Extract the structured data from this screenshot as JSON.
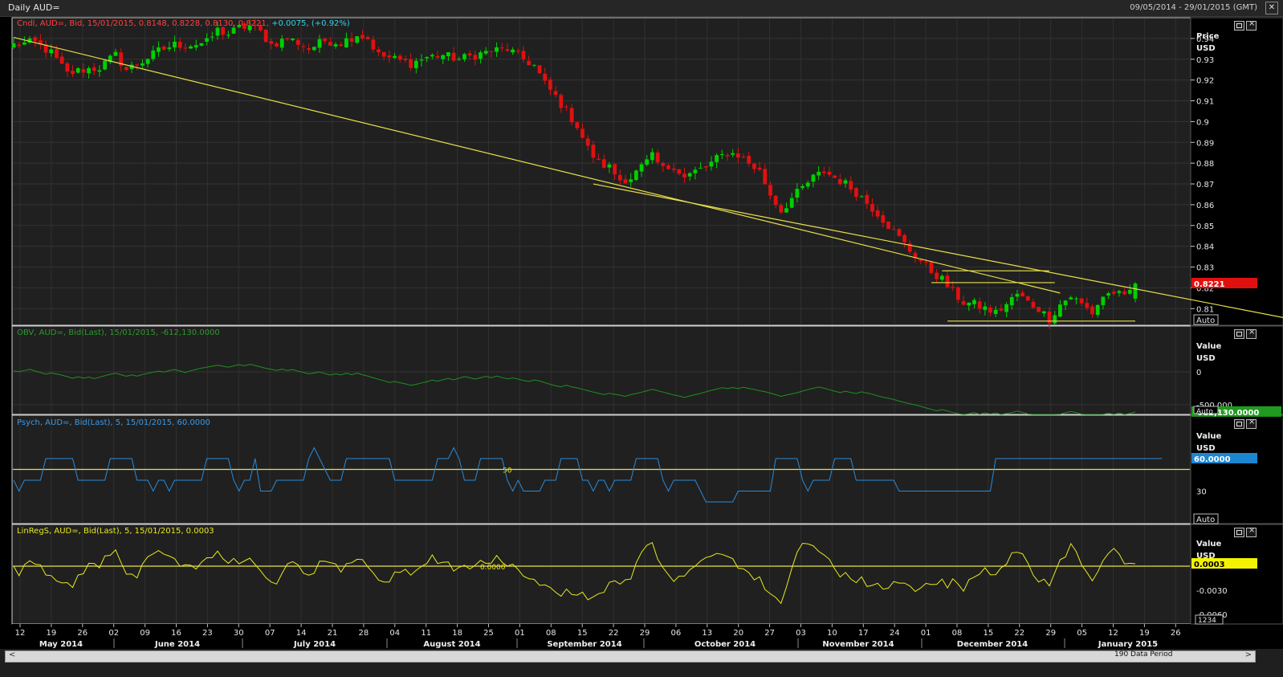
{
  "window": {
    "title": "Daily AUD=",
    "range": "09/05/2014 - 29/01/2015 (GMT)",
    "close_glyph": "✕"
  },
  "panels": {
    "price": {
      "title": "Cndl, AUD=, Bid, 15/01/2015, 0.8148, 0.8228, 0.8130, 0.8221,",
      "change": "+0.0075, (+0.92%)",
      "axis_title": [
        "Price",
        "USD"
      ],
      "last_label": "0.8221",
      "auto": "Auto"
    },
    "obv": {
      "title": "OBV, AUD=, Bid(Last), 15/01/2015, -612,130.0000",
      "axis_title": [
        "Value",
        "USD"
      ],
      "last_label": "-612,130.0000",
      "auto": "Auto"
    },
    "psych": {
      "title": "Psych, AUD=, Bid(Last),  5, 15/01/2015, 60.0000",
      "axis_title": [
        "Value",
        "USD"
      ],
      "last_label": "60.0000",
      "ref_label": "50",
      "auto": "Auto"
    },
    "linreg": {
      "title": "LinRegS, AUD=, Bid(Last),  5, 15/01/2015, 0.0003",
      "axis_title": [
        "Value",
        "USD"
      ],
      "last_label": "0.0003",
      "ref_label": "0.0000",
      "auto": "1234"
    }
  },
  "footer": {
    "scroll_left": "<",
    "scroll_right": ">",
    "period": "190 Data Period"
  },
  "colors": {
    "up": "#00d000",
    "down": "#e01010",
    "obv": "#1f8f1f",
    "psych": "#2a8ad8",
    "linreg": "#e8e820",
    "trend": "#e8e04a",
    "last_price": "#e01010",
    "last_obv": "#1f9a1f",
    "last_psych": "#1c86d0",
    "last_linreg": "#f3f300"
  },
  "chart_data": [
    {
      "type": "candlestick",
      "title": "Daily AUD=",
      "ylabel": "Price USD",
      "ylim": [
        0.802,
        0.95
      ],
      "y_ticks": [
        0.94,
        0.93,
        0.92,
        0.91,
        0.9,
        0.89,
        0.88,
        0.87,
        0.86,
        0.85,
        0.84,
        0.83,
        0.82,
        0.81
      ],
      "x_ticks": [
        "12",
        "19",
        "26",
        "02",
        "09",
        "16",
        "23",
        "30",
        "07",
        "14",
        "21",
        "28",
        "04",
        "11",
        "18",
        "25",
        "01",
        "08",
        "15",
        "22",
        "29",
        "06",
        "13",
        "20",
        "27",
        "03",
        "10",
        "17",
        "24",
        "01",
        "08",
        "15",
        "22",
        "29",
        "05",
        "12",
        "19",
        "26"
      ],
      "x_months": [
        "May 2014",
        "June 2014",
        "July 2014",
        "August 2014",
        "September 2014",
        "October 2014",
        "November 2014",
        "December 2014",
        "January 2015"
      ],
      "last": {
        "date": "15/01/2015",
        "open": 0.8148,
        "high": 0.8228,
        "low": 0.813,
        "close": 0.8221
      },
      "trend_lines": [
        {
          "from": [
            0,
            0.9405
          ],
          "to": [
            195,
            0.8175
          ]
        },
        {
          "from": [
            108,
            0.87
          ],
          "to": [
            250,
            0.799
          ]
        },
        {
          "from": [
            173,
            0.8282
          ],
          "to": [
            193,
            0.8282
          ]
        },
        {
          "from": [
            171,
            0.8225
          ],
          "to": [
            194,
            0.8225
          ]
        },
        {
          "from": [
            174,
            0.804
          ],
          "to": [
            209,
            0.804
          ]
        }
      ],
      "close_anchors": [
        [
          0,
          0.937
        ],
        [
          4,
          0.938
        ],
        [
          7,
          0.933
        ],
        [
          10,
          0.923
        ],
        [
          13,
          0.925
        ],
        [
          16,
          0.926
        ],
        [
          19,
          0.932
        ],
        [
          21,
          0.925
        ],
        [
          24,
          0.929
        ],
        [
          27,
          0.934
        ],
        [
          30,
          0.937
        ],
        [
          33,
          0.937
        ],
        [
          36,
          0.938
        ],
        [
          38,
          0.944
        ],
        [
          40,
          0.942
        ],
        [
          42,
          0.945
        ],
        [
          44,
          0.946
        ],
        [
          46,
          0.943
        ],
        [
          48,
          0.937
        ],
        [
          51,
          0.94
        ],
        [
          53,
          0.938
        ],
        [
          55,
          0.935
        ],
        [
          58,
          0.939
        ],
        [
          61,
          0.938
        ],
        [
          64,
          0.942
        ],
        [
          66,
          0.94
        ],
        [
          68,
          0.932
        ],
        [
          71,
          0.93
        ],
        [
          74,
          0.928
        ],
        [
          77,
          0.931
        ],
        [
          80,
          0.932
        ],
        [
          83,
          0.93
        ],
        [
          86,
          0.932
        ],
        [
          89,
          0.934
        ],
        [
          92,
          0.935
        ],
        [
          95,
          0.93
        ],
        [
          97,
          0.927
        ],
        [
          99,
          0.918
        ],
        [
          101,
          0.912
        ],
        [
          103,
          0.905
        ],
        [
          105,
          0.898
        ],
        [
          107,
          0.887
        ],
        [
          109,
          0.88
        ],
        [
          111,
          0.878
        ],
        [
          113,
          0.872
        ],
        [
          115,
          0.873
        ],
        [
          117,
          0.878
        ],
        [
          119,
          0.883
        ],
        [
          121,
          0.877
        ],
        [
          123,
          0.879
        ],
        [
          125,
          0.873
        ],
        [
          127,
          0.876
        ],
        [
          129,
          0.878
        ],
        [
          131,
          0.882
        ],
        [
          133,
          0.885
        ],
        [
          135,
          0.884
        ],
        [
          137,
          0.88
        ],
        [
          139,
          0.876
        ],
        [
          141,
          0.865
        ],
        [
          143,
          0.857
        ],
        [
          145,
          0.863
        ],
        [
          147,
          0.868
        ],
        [
          149,
          0.873
        ],
        [
          151,
          0.876
        ],
        [
          153,
          0.873
        ],
        [
          155,
          0.87
        ],
        [
          157,
          0.866
        ],
        [
          159,
          0.861
        ],
        [
          161,
          0.856
        ],
        [
          163,
          0.85
        ],
        [
          165,
          0.844
        ],
        [
          167,
          0.838
        ],
        [
          169,
          0.833
        ],
        [
          171,
          0.828
        ],
        [
          173,
          0.824
        ],
        [
          175,
          0.818
        ],
        [
          177,
          0.813
        ],
        [
          179,
          0.812
        ],
        [
          181,
          0.81
        ],
        [
          183,
          0.808
        ],
        [
          185,
          0.812
        ],
        [
          187,
          0.817
        ],
        [
          189,
          0.813
        ],
        [
          191,
          0.81
        ],
        [
          193,
          0.805
        ],
        [
          195,
          0.812
        ],
        [
          197,
          0.816
        ],
        [
          199,
          0.812
        ],
        [
          201,
          0.808
        ],
        [
          203,
          0.816
        ],
        [
          205,
          0.818
        ],
        [
          207,
          0.815
        ],
        [
          209,
          0.822
        ]
      ],
      "n_bars": 210
    },
    {
      "type": "line",
      "title": "OBV",
      "ylabel": "Value USD",
      "ylim": [
        -650000,
        700000
      ],
      "y_ticks": [
        0,
        -500000
      ],
      "y_tick_labels": [
        "0",
        "-500,000"
      ],
      "last": -612130
    },
    {
      "type": "line",
      "title": "Psych",
      "ylabel": "Value USD",
      "ylim": [
        0,
        100
      ],
      "y_ticks": [
        30
      ],
      "reference": 50,
      "last": 60,
      "levels": [
        40,
        30,
        40,
        40,
        40,
        40,
        60,
        60,
        60,
        60,
        60,
        60,
        40,
        40,
        40,
        40,
        40,
        40,
        60,
        60,
        60,
        60,
        60,
        40,
        40,
        40,
        30,
        40,
        40,
        30,
        40,
        40,
        40,
        40,
        40,
        40,
        60,
        60,
        60,
        60,
        60,
        40,
        30,
        40,
        40,
        60,
        30,
        30,
        30,
        40,
        40,
        40,
        40,
        40,
        40,
        60,
        70,
        60,
        50,
        40,
        40,
        40,
        60,
        60,
        60,
        60,
        60,
        60,
        60,
        60,
        60,
        40,
        40,
        40,
        40,
        40,
        40,
        40,
        40,
        60,
        60,
        60,
        70,
        60,
        40,
        40,
        40,
        60,
        60,
        60,
        60,
        60,
        40,
        30,
        40,
        30,
        30,
        30,
        30,
        40,
        40,
        40,
        60,
        60,
        60,
        60,
        40,
        40,
        30,
        40,
        40,
        30,
        40,
        40,
        40,
        40,
        60,
        60,
        60,
        60,
        60,
        40,
        30,
        40,
        40,
        40,
        40,
        40,
        30,
        20,
        20,
        20,
        20,
        20,
        20,
        30,
        30,
        30,
        30,
        30,
        30,
        30,
        60,
        60,
        60,
        60,
        60,
        40,
        30,
        40,
        40,
        40,
        40,
        60,
        60,
        60,
        60,
        40,
        40,
        40,
        40,
        40,
        40,
        40,
        40,
        30,
        30,
        30,
        30,
        30,
        30,
        30,
        30,
        30,
        30,
        30,
        30,
        30,
        30,
        30,
        30,
        30,
        30,
        60,
        60,
        60,
        60,
        60,
        60,
        60,
        60,
        60,
        60,
        60,
        60,
        60,
        60,
        60,
        60,
        60,
        60,
        60,
        60,
        60,
        60,
        60,
        60,
        60,
        60,
        60,
        60,
        60,
        60,
        60,
        60
      ]
    },
    {
      "type": "line",
      "title": "LinRegS",
      "ylabel": "Value USD",
      "ylim": [
        -0.0072,
        0.0052
      ],
      "y_ticks": [
        -0.003,
        -0.006
      ],
      "y_tick_labels": [
        "-0.0030",
        "-0.0060"
      ],
      "reference": 0,
      "last": 0.0003
    }
  ]
}
